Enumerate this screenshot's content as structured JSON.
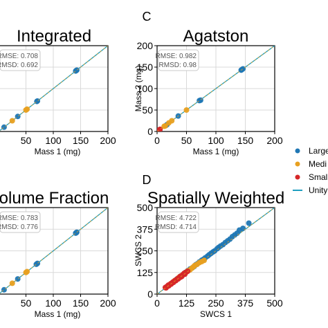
{
  "colors": {
    "large": "#1f77b4",
    "medium": "#e8a020",
    "small": "#d62728",
    "unity": "#1f9fc0",
    "grid": "#d9d9d9",
    "axis": "#000000"
  },
  "legend": {
    "placement": "right",
    "entries": [
      {
        "key": "large",
        "label": "Large"
      },
      {
        "key": "medium",
        "label": "Medi"
      },
      {
        "key": "small",
        "label": "Smal"
      },
      {
        "key": "unity",
        "label": "Unity"
      }
    ]
  },
  "chart_data": [
    {
      "id": "integrated",
      "type": "scatter",
      "panel_letter": "",
      "title": "Integrated",
      "xlabel": "Mass 1 (mg)",
      "ylabel": "",
      "xlim": [
        0,
        200
      ],
      "ylim": [
        0,
        200
      ],
      "xticks": [
        "50",
        "100",
        "150",
        "200"
      ],
      "yticks": [],
      "stats": {
        "rmse": "RMSE: 0.708",
        "rmsd": "RMSD: 0.692"
      },
      "series": [
        {
          "key": "large",
          "points": [
            [
              141,
              141
            ],
            [
              143,
              143
            ],
            [
              142,
              142
            ],
            [
              70,
              70
            ],
            [
              71,
              71
            ],
            [
              35,
              35
            ],
            [
              10,
              10
            ]
          ]
        },
        {
          "key": "medium",
          "points": [
            [
              50,
              50
            ],
            [
              25,
              25
            ],
            [
              52,
              52
            ]
          ]
        },
        {
          "key": "small",
          "points": []
        }
      ],
      "unity": [
        0,
        200
      ]
    },
    {
      "id": "agatston",
      "type": "scatter",
      "panel_letter": "C",
      "title": "Agatston",
      "xlabel": "Mass 1 (mg)",
      "ylabel": "Mass 2 (mg)",
      "xlim": [
        0,
        200
      ],
      "ylim": [
        0,
        200
      ],
      "xticks": [
        "0",
        "50",
        "100",
        "150",
        "200"
      ],
      "yticks": [
        "0",
        "50",
        "100",
        "150",
        "200"
      ],
      "stats": {
        "rmse": "RMSE: 0.982",
        "rmsd": "RMSD: 0.98"
      },
      "series": [
        {
          "key": "large",
          "points": [
            [
              143,
              143
            ],
            [
              146,
              146
            ],
            [
              144,
              144
            ],
            [
              72,
              72
            ],
            [
              74,
              73
            ],
            [
              36,
              36
            ],
            [
              15,
              14
            ],
            [
              17,
              16
            ]
          ]
        },
        {
          "key": "medium",
          "points": [
            [
              50,
              50
            ],
            [
              25,
              25
            ],
            [
              20,
              20
            ],
            [
              12,
              12
            ],
            [
              14,
              13
            ]
          ]
        },
        {
          "key": "small",
          "points": [
            [
              2,
              2
            ],
            [
              3,
              3
            ],
            [
              4,
              4
            ],
            [
              5,
              5
            ],
            [
              1,
              1
            ]
          ]
        }
      ],
      "unity": [
        0,
        200
      ]
    },
    {
      "id": "volume-fraction",
      "type": "scatter",
      "panel_letter": "",
      "title": "olume Fraction",
      "xlabel": "Mass 1 (mg)",
      "ylabel": "",
      "xlim": [
        0,
        200
      ],
      "ylim": [
        0,
        200
      ],
      "xticks": [
        "50",
        "100",
        "150",
        "200"
      ],
      "yticks": [],
      "stats": {
        "rmse": "RMSE: 0.783",
        "rmsd": "RMSD: 0.776"
      },
      "series": [
        {
          "key": "large",
          "points": [
            [
              141,
              141
            ],
            [
              143,
              143
            ],
            [
              142,
              142
            ],
            [
              69,
              69
            ],
            [
              71,
              71
            ],
            [
              35,
              35
            ],
            [
              10,
              10
            ]
          ]
        },
        {
          "key": "medium",
          "points": [
            [
              50,
              50
            ],
            [
              25,
              25
            ],
            [
              52,
              52
            ]
          ]
        },
        {
          "key": "small",
          "points": []
        }
      ],
      "unity": [
        0,
        200
      ]
    },
    {
      "id": "spatially-weighted",
      "type": "scatter",
      "panel_letter": "D",
      "title": "Spatially Weighted",
      "xlabel": "SWCS 1",
      "ylabel": "SWCS 2",
      "xlim": [
        0,
        500
      ],
      "ylim": [
        0,
        500
      ],
      "xticks": [
        "0",
        "125",
        "250",
        "375",
        "500"
      ],
      "yticks": [
        "0",
        "125",
        "250",
        "375",
        "500"
      ],
      "stats": {
        "rmse": "RMSE: 4.722",
        "rmsd": "RMSD: 4.714"
      },
      "series": [
        {
          "key": "large",
          "points": [
            [
              390,
              410
            ],
            [
              365,
              380
            ],
            [
              350,
              370
            ],
            [
              340,
              352
            ],
            [
              330,
              342
            ],
            [
              320,
              332
            ],
            [
              310,
              318
            ],
            [
              300,
              308
            ],
            [
              290,
              298
            ],
            [
              280,
              286
            ],
            [
              270,
              278
            ],
            [
              262,
              270
            ],
            [
              255,
              262
            ],
            [
              245,
              250
            ],
            [
              238,
              244
            ],
            [
              230,
              236
            ],
            [
              222,
              228
            ],
            [
              215,
              220
            ],
            [
              205,
              210
            ],
            [
              198,
              202
            ],
            [
              190,
              196
            ],
            [
              180,
              186
            ],
            [
              172,
              176
            ],
            [
              165,
              170
            ],
            [
              158,
              160
            ],
            [
              150,
              152
            ],
            [
              140,
              145
            ],
            [
              130,
              135
            ],
            [
              120,
              125
            ],
            [
              110,
              112
            ],
            [
              100,
              104
            ],
            [
              95,
              96
            ],
            [
              85,
              88
            ]
          ]
        },
        {
          "key": "medium",
          "points": [
            [
              200,
              195
            ],
            [
              190,
              188
            ],
            [
              180,
              182
            ],
            [
              170,
              172
            ],
            [
              160,
              165
            ],
            [
              155,
              158
            ],
            [
              148,
              150
            ],
            [
              140,
              140
            ],
            [
              132,
              135
            ],
            [
              125,
              128
            ],
            [
              118,
              122
            ],
            [
              112,
              115
            ],
            [
              105,
              108
            ],
            [
              98,
              100
            ],
            [
              92,
              96
            ],
            [
              88,
              88
            ],
            [
              80,
              82
            ],
            [
              75,
              78
            ],
            [
              70,
              72
            ],
            [
              65,
              66
            ],
            [
              60,
              62
            ]
          ]
        },
        {
          "key": "small",
          "points": [
            [
              130,
              132
            ],
            [
              122,
              125
            ],
            [
              118,
              115
            ],
            [
              110,
              112
            ],
            [
              105,
              102
            ],
            [
              100,
              98
            ],
            [
              95,
              96
            ],
            [
              90,
              88
            ],
            [
              85,
              86
            ],
            [
              80,
              78
            ],
            [
              75,
              76
            ],
            [
              70,
              68
            ],
            [
              65,
              66
            ],
            [
              60,
              58
            ],
            [
              55,
              56
            ],
            [
              50,
              48
            ],
            [
              45,
              46
            ],
            [
              40,
              40
            ],
            [
              38,
              36
            ],
            [
              35,
              38
            ],
            [
              42,
              44
            ],
            [
              48,
              52
            ],
            [
              58,
              60
            ],
            [
              68,
              70
            ],
            [
              78,
              80
            ],
            [
              88,
              90
            ],
            [
              98,
              102
            ],
            [
              108,
              110
            ],
            [
              115,
              120
            ]
          ]
        }
      ],
      "unity": [
        0,
        500
      ]
    }
  ]
}
